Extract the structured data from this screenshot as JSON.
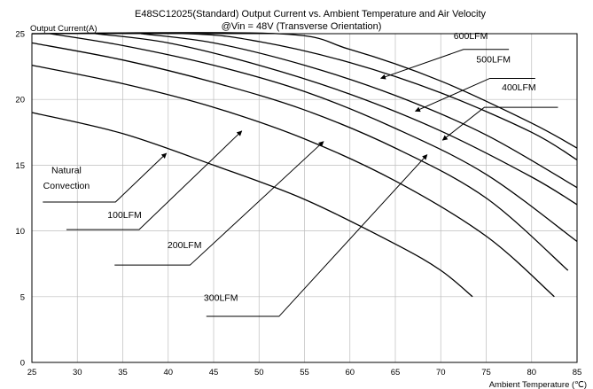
{
  "chart_data": {
    "type": "line",
    "title": "E48SC12025(Standard) Output Current vs. Ambient Temperature and Air Velocity",
    "subtitle": "@Vin = 48V (Transverse Orientation)",
    "xlabel": "Ambient Temperature (℃)",
    "ylabel": "Output Current(A)",
    "xlim": [
      25,
      85
    ],
    "ylim": [
      0,
      25
    ],
    "xticks": [
      25,
      30,
      35,
      40,
      45,
      50,
      55,
      60,
      65,
      70,
      75,
      80,
      85
    ],
    "yticks": [
      0,
      5,
      10,
      15,
      20,
      25
    ],
    "grid": true,
    "series": [
      {
        "name": "Natural Convection",
        "points": [
          [
            25,
            19.0
          ],
          [
            35,
            17.4
          ],
          [
            45,
            15.0
          ],
          [
            55,
            12.4
          ],
          [
            65,
            9.0
          ],
          [
            70,
            7.0
          ],
          [
            73.5,
            5.0
          ]
        ]
      },
      {
        "name": "100LFM",
        "points": [
          [
            25,
            22.6
          ],
          [
            35,
            21.2
          ],
          [
            45,
            19.4
          ],
          [
            55,
            17.0
          ],
          [
            65,
            13.8
          ],
          [
            75,
            9.6
          ],
          [
            82.5,
            5.0
          ]
        ]
      },
      {
        "name": "200LFM",
        "points": [
          [
            25,
            24.3
          ],
          [
            35,
            23.0
          ],
          [
            45,
            21.3
          ],
          [
            55,
            19.2
          ],
          [
            65,
            16.3
          ],
          [
            75,
            12.5
          ],
          [
            84,
            7.0
          ]
        ]
      },
      {
        "name": "300LFM",
        "points": [
          [
            27,
            25.0
          ],
          [
            35,
            24.1
          ],
          [
            45,
            22.6
          ],
          [
            55,
            20.6
          ],
          [
            65,
            17.8
          ],
          [
            75,
            14.3
          ],
          [
            85,
            9.2
          ]
        ]
      },
      {
        "name": "400LFM",
        "points": [
          [
            32,
            25.0
          ],
          [
            40,
            24.3
          ],
          [
            50,
            22.6
          ],
          [
            60,
            20.4
          ],
          [
            70,
            17.6
          ],
          [
            80,
            14.1
          ],
          [
            85,
            12.0
          ]
        ]
      },
      {
        "name": "500LFM",
        "points": [
          [
            37,
            25.0
          ],
          [
            45,
            24.3
          ],
          [
            55,
            22.6
          ],
          [
            65,
            20.3
          ],
          [
            75,
            17.3
          ],
          [
            85,
            13.3
          ]
        ]
      },
      {
        "name": "600LFM",
        "points": [
          [
            25,
            25.0
          ],
          [
            42,
            25.0
          ],
          [
            50,
            24.4
          ],
          [
            60,
            22.8
          ],
          [
            70,
            20.5
          ],
          [
            80,
            17.5
          ],
          [
            85,
            15.4
          ]
        ]
      },
      {
        "name": "",
        "points": [
          [
            25,
            25.0
          ],
          [
            52,
            25.0
          ],
          [
            60,
            23.8
          ],
          [
            70,
            21.4
          ],
          [
            80,
            18.2
          ],
          [
            85,
            16.3
          ]
        ]
      }
    ],
    "annotations": [
      {
        "text": "Natural",
        "pos": [
          28.8,
          14.4
        ],
        "leader": [
          [
            26.2,
            12.2
          ],
          [
            34.2,
            12.2
          ],
          [
            39.8,
            15.9
          ]
        ]
      },
      {
        "text": "Convection",
        "pos": [
          28.8,
          13.2
        ]
      },
      {
        "text": "100LFM",
        "pos": [
          35.2,
          11.0
        ],
        "leader": [
          [
            28.8,
            10.1
          ],
          [
            36.8,
            10.1
          ],
          [
            48.1,
            17.6
          ]
        ]
      },
      {
        "text": "200LFM",
        "pos": [
          41.8,
          8.7
        ],
        "leader": [
          [
            34.1,
            7.4
          ],
          [
            42.4,
            7.4
          ],
          [
            57.1,
            16.8
          ]
        ]
      },
      {
        "text": "300LFM",
        "pos": [
          45.8,
          4.7
        ],
        "leader": [
          [
            44.2,
            3.5
          ],
          [
            52.2,
            3.5
          ],
          [
            68.5,
            15.8
          ]
        ]
      },
      {
        "text": "400LFM",
        "pos": [
          78.6,
          20.7
        ],
        "leader": [
          [
            82.9,
            19.4
          ],
          [
            74.8,
            19.4
          ],
          [
            70.2,
            16.9
          ]
        ]
      },
      {
        "text": "500LFM",
        "pos": [
          75.8,
          22.8
        ],
        "leader": [
          [
            80.4,
            21.6
          ],
          [
            75.4,
            21.6
          ],
          [
            67.2,
            19.1
          ]
        ]
      },
      {
        "text": "600LFM",
        "pos": [
          73.3,
          24.6
        ],
        "leader": [
          [
            77.5,
            23.8
          ],
          [
            72.5,
            23.8
          ],
          [
            63.4,
            21.6
          ]
        ]
      }
    ]
  }
}
